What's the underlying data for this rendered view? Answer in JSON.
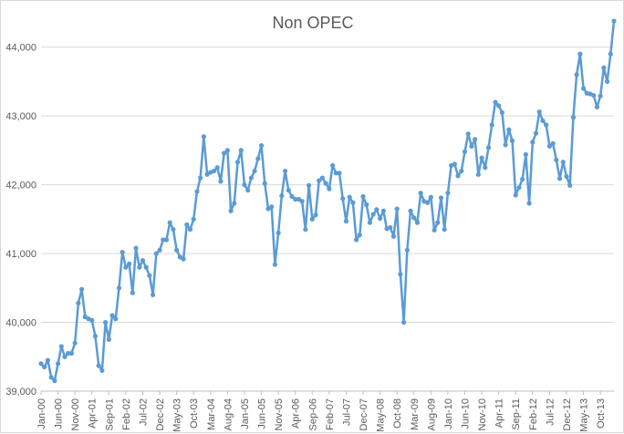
{
  "chart_data": {
    "type": "line",
    "title": "Non OPEC",
    "xlabel": "",
    "ylabel": "",
    "ylim": [
      39000,
      44500
    ],
    "yticks": [
      39000,
      40000,
      41000,
      42000,
      43000,
      44000
    ],
    "ytick_labels": [
      "39,000",
      "40,000",
      "41,000",
      "42,000",
      "43,000",
      "44,000"
    ],
    "grid": true,
    "legend": "none",
    "marker": "circle",
    "color": "#5B9BD5",
    "x_start": "Jan-00",
    "x_end": "Oct-13",
    "x_tick_labels": [
      "Jan-00",
      "Jun-00",
      "Nov-00",
      "Apr-01",
      "Sep-01",
      "Feb-02",
      "Jul-02",
      "Dec-02",
      "May-03",
      "Oct-03",
      "Mar-04",
      "Aug-04",
      "Jan-05",
      "Jun-05",
      "Nov-05",
      "Apr-06",
      "Sep-06",
      "Feb-07",
      "Jul-07",
      "Dec-07",
      "May-08",
      "Oct-08",
      "Mar-09",
      "Aug-09",
      "Jan-10",
      "Jun-10",
      "Nov-10",
      "Apr-11",
      "Sep-11",
      "Feb-12",
      "Jul-12",
      "Dec-12",
      "May-13",
      "Oct-13"
    ],
    "series": [
      {
        "values": [
          39400,
          39350,
          39450,
          39200,
          39150,
          39400,
          39650,
          39500,
          39550,
          39550,
          39700,
          40280,
          40480,
          40080,
          40050,
          40030,
          39800,
          39370,
          39300,
          40000,
          39750,
          40100,
          40050,
          40500,
          41020,
          40800,
          40850,
          40430,
          41080,
          40800,
          40900,
          40800,
          40680,
          40400,
          41000,
          41050,
          41200,
          41200,
          41450,
          41350,
          41050,
          40950,
          40920,
          41420,
          41350,
          41500,
          41900,
          42100,
          42700,
          42150,
          42180,
          42200,
          42250,
          42050,
          42460,
          42500,
          41620,
          41730,
          42330,
          42500,
          42000,
          41920,
          42100,
          42200,
          42380,
          42570,
          42020,
          41650,
          41680,
          40840,
          41300,
          41840,
          42200,
          41920,
          41830,
          41790,
          41790,
          41760,
          41350,
          41990,
          41500,
          41560,
          42060,
          42100,
          42020,
          41940,
          42280,
          42170,
          42170,
          41800,
          41470,
          41820,
          41740,
          41200,
          41270,
          41830,
          41710,
          41450,
          41570,
          41640,
          41510,
          41620,
          41360,
          41380,
          41250,
          41650,
          40700,
          40000,
          41050,
          41620,
          41520,
          41450,
          41880,
          41760,
          41740,
          41820,
          41340,
          41450,
          41810,
          41350,
          41880,
          42280,
          42300,
          42130,
          42200,
          42480,
          42740,
          42560,
          42660,
          42150,
          42390,
          42250,
          42540,
          42870,
          43200,
          43150,
          43050,
          42580,
          42800,
          42640,
          41850,
          41960,
          42080,
          42440,
          41730,
          42620,
          42750,
          43060,
          42930,
          42870,
          42560,
          42600,
          42360,
          42090,
          42330,
          42120,
          41990,
          42980,
          43600,
          43900,
          43400,
          43330,
          43320,
          43300,
          43130,
          43290,
          43700,
          43500,
          43900,
          44380
        ]
      }
    ]
  }
}
